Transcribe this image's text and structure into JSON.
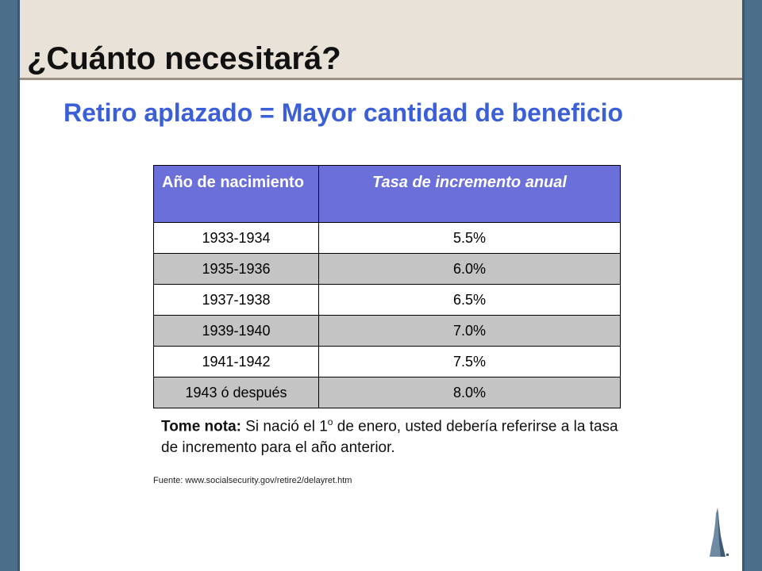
{
  "slide": {
    "title": "¿Cuánto necesitará?",
    "subtitle": "Retiro aplazado = Mayor cantidad de beneficio"
  },
  "table": {
    "headers": [
      "Año de nacimiento",
      "Tasa de incremento anual"
    ],
    "rows": [
      {
        "year": "1933-1934",
        "rate": "5.5%"
      },
      {
        "year": "1935-1936",
        "rate": "6.0%"
      },
      {
        "year": "1937-1938",
        "rate": "6.5%"
      },
      {
        "year": "1939-1940",
        "rate": "7.0%"
      },
      {
        "year": "1941-1942",
        "rate": "7.5%"
      },
      {
        "year": "1943 ó después",
        "rate": "8.0%"
      }
    ],
    "header_color": "#6b6fd9",
    "alt_row_color": "#c4c4c4"
  },
  "note": {
    "label": "Tome nota:",
    "text_before_sup": " Si nació el 1",
    "sup": "o",
    "text_after_sup": " de enero, usted debería referirse a la tasa de incremento para el año anterior."
  },
  "source": "Fuente: www.socialsecurity.gov/retire2/delayret.htm",
  "colors": {
    "accent_blue": "#3b5fd9",
    "side_bar": "#4b6f8a",
    "header_band": "#e8e2d9"
  },
  "icons": {
    "logo": "pyramid-tower-logo"
  }
}
